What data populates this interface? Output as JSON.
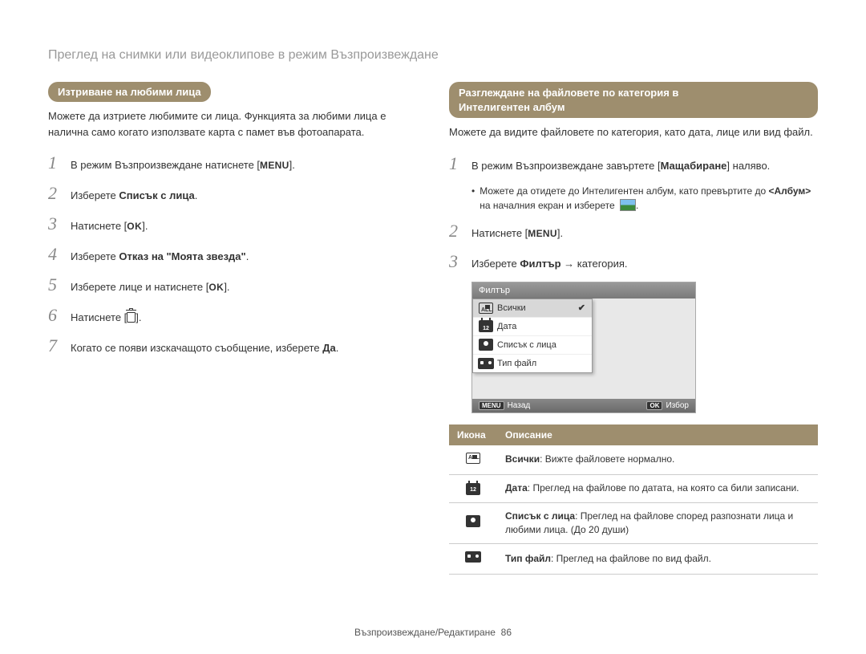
{
  "page": {
    "title": "Преглед на снимки или видеоклипове в режим Възпроизвеждане",
    "footer_text": "Възпроизвеждане/Редактиране",
    "footer_page": "86"
  },
  "left": {
    "header": "Изтриване на любими лица",
    "intro": "Можете да изтриете любимите си лица. Функцията за любими лица е налична само когато използвате карта с памет във фотоапарата.",
    "steps": [
      {
        "n": "1",
        "html": "В режим Възпроизвеждане натиснете [<span class='btn-label'>MENU</span>]."
      },
      {
        "n": "2",
        "html": "Изберете <b>Списък с лица</b>."
      },
      {
        "n": "3",
        "html": "Натиснете [<span class='ok-label'>OK</span>]."
      },
      {
        "n": "4",
        "html": "Изберете <b>Отказ на \"Моята звезда\"</b>."
      },
      {
        "n": "5",
        "html": "Изберете лице и натиснете [<span class='ok-label'>OK</span>]."
      },
      {
        "n": "6",
        "html": "Натиснете [<span class='trash-icon' data-name='trash-icon' data-interactable='false'></span>]."
      },
      {
        "n": "7",
        "html": "Когато се появи изскачащото съобщение, изберете <b>Да</b>."
      }
    ]
  },
  "right": {
    "header_line1": "Разглеждане на файловете по категория в",
    "header_line2": "Интелигентен албум",
    "intro": "Можете да видите файловете по категория, като дата, лице или вид файл.",
    "steps": [
      {
        "n": "1",
        "html": "В режим Възпроизвеждане завъртете [<b>Мащабиране</b>] наляво."
      },
      {
        "n": "2",
        "html": "Натиснете [<span class='btn-label'>MENU</span>]."
      },
      {
        "n": "3",
        "html": "Изберете <b>Филтър</b> → категория."
      }
    ],
    "substep": "Можете да отидете до Интелигентен албум, като превъртите до <b>&lt;Албум&gt;</b> на началния екран и изберете",
    "screenshot": {
      "title": "Филтър",
      "items": [
        {
          "icon": "all",
          "label": "Всички",
          "selected": true
        },
        {
          "icon": "date",
          "label": "Дата"
        },
        {
          "icon": "face",
          "label": "Списък с лица"
        },
        {
          "icon": "file",
          "label": "Тип файл"
        }
      ],
      "footer_left_key": "MENU",
      "footer_left": "Назад",
      "footer_right_key": "OK",
      "footer_right": "Избор"
    },
    "table": {
      "columns": [
        "Икона",
        "Описание"
      ],
      "rows": [
        {
          "icon": "all",
          "html": "<b>Всички</b>: Вижте файловете нормално."
        },
        {
          "icon": "date",
          "html": "<b>Дата</b>: Преглед на файлове по датата, на която са били записани."
        },
        {
          "icon": "face",
          "html": "<b>Списък с лица</b>: Преглед на файлове според разпознати лица и любими лица. (До 20 души)"
        },
        {
          "icon": "file",
          "html": "<b>Тип файл</b>: Преглед на файлове по вид файл."
        }
      ]
    }
  },
  "style": {
    "accent": "#9e8e6e",
    "title_color": "#999999",
    "text_color": "#333333",
    "step_number_color": "#888888",
    "border_color": "#cccccc",
    "fonts": {
      "body": "Arial",
      "step_number": "Georgia italic"
    },
    "font_sizes": {
      "title": 16,
      "body": 13,
      "table": 12,
      "step_number": 22
    }
  }
}
